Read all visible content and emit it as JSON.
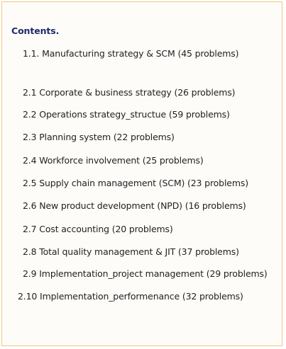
{
  "contents": {
    "title": "Contents.",
    "items": [
      {
        "label": "1.1. Manufacturing strategy & SCM (45 problems)"
      },
      {
        "label": "2.1 Corporate & business strategy (26 problems)"
      },
      {
        "label": "2.2 Operations strategy_structue (59 problems)"
      },
      {
        "label": "2.3 Planning system (22 problems)"
      },
      {
        "label": "2.4 Workforce involvement (25 problems)"
      },
      {
        "label": "2.5 Supply chain management (SCM) (23 problems)"
      },
      {
        "label": "2.6 New product development (NPD) (16 problems)"
      },
      {
        "label": "2.7 Cost accounting (20 problems)"
      },
      {
        "label": "2.8 Total quality management & JIT (37 problems)"
      },
      {
        "label": "2.9 Implementation_project management (29 problems)"
      },
      {
        "label": "2.10 Implementation_performenance (32 problems)"
      }
    ]
  }
}
